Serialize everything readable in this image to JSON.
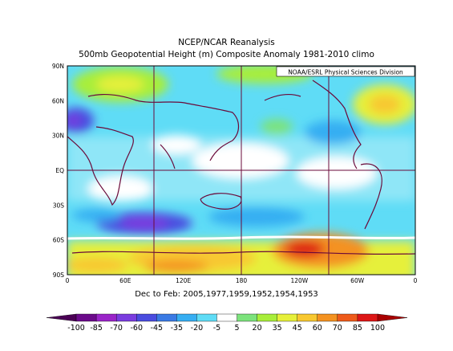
{
  "title": "NCEP/NCAR Reanalysis",
  "subtitle": "500mb Geopotential Height (m) Composite Anomaly 1981-2010 climo",
  "credit": "NOAA/ESRL Physical Sciences Division",
  "period": "Dec to Feb: 2005,1977,1959,1952,1954,1953",
  "lat_ticks": [
    "90N",
    "60N",
    "30N",
    "EQ",
    "30S",
    "60S",
    "90S"
  ],
  "lon_ticks": [
    "0",
    "60E",
    "120E",
    "180",
    "120W",
    "60W",
    "0"
  ],
  "colorbar": {
    "labels": [
      "-100",
      "-85",
      "-70",
      "-60",
      "-45",
      "-35",
      "-20",
      "-5",
      "5",
      "20",
      "35",
      "45",
      "60",
      "70",
      "85",
      "100"
    ],
    "colors": [
      "#4b0055",
      "#6b0a8a",
      "#9a24c8",
      "#7a3cdf",
      "#4a4cdf",
      "#3a7ae4",
      "#36aef2",
      "#5fdcf6",
      "#ffffff",
      "#7ce37c",
      "#a8ee3a",
      "#e6f03a",
      "#f8c830",
      "#f49220",
      "#ee5a1a",
      "#dd1616",
      "#a90000"
    ]
  },
  "chart_data": {
    "type": "heatmap",
    "title": "NCEP/NCAR Reanalysis",
    "subtitle": "500mb Geopotential Height (m) Composite Anomaly 1981-2010 climo",
    "xlabel": "",
    "ylabel": "",
    "xlim": [
      0,
      360
    ],
    "ylim": [
      -90,
      90
    ],
    "field_features": [
      {
        "lon": 30,
        "lat": 80,
        "value": 30
      },
      {
        "lon": 170,
        "lat": 85,
        "value": 25
      },
      {
        "lon": 340,
        "lat": 60,
        "value": 45
      },
      {
        "lon": 10,
        "lat": 47,
        "value": -30
      },
      {
        "lon": 200,
        "lat": 40,
        "value": -25
      },
      {
        "lon": 280,
        "lat": 30,
        "value": -20
      },
      {
        "lon": 80,
        "lat": -50,
        "value": -60
      },
      {
        "lon": 190,
        "lat": -52,
        "value": -25
      },
      {
        "lon": 260,
        "lat": -65,
        "value": 95
      },
      {
        "lon": 60,
        "lat": -80,
        "value": 65
      },
      {
        "lon": 140,
        "lat": -80,
        "value": 70
      }
    ]
  }
}
